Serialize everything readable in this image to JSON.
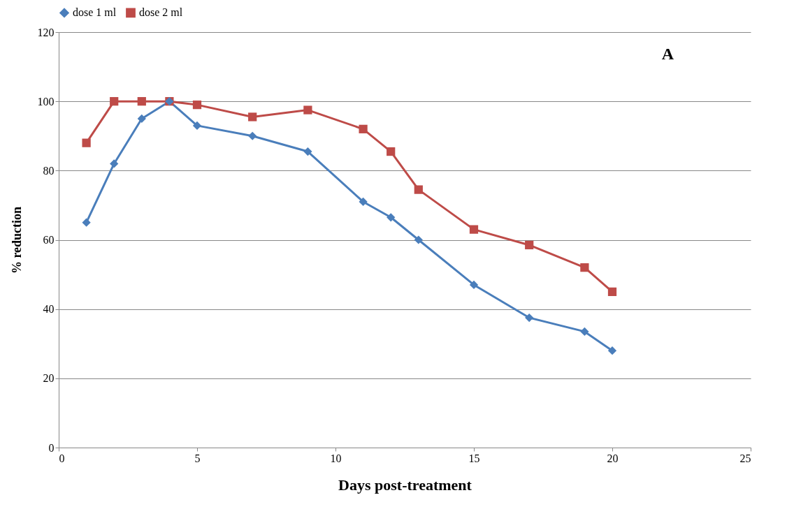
{
  "chart_data": {
    "type": "line",
    "xlabel": "Days post-treatment",
    "ylabel": "% reduction",
    "x": [
      1,
      2,
      3,
      4,
      5,
      7,
      9,
      11,
      12,
      13,
      15,
      17,
      19,
      20
    ],
    "series": [
      {
        "name": "dose 1 ml",
        "color": "#4a7ebb",
        "marker": "diamond",
        "values": [
          65,
          82,
          95,
          100,
          93,
          90,
          85.5,
          71,
          66.5,
          60,
          47,
          37.5,
          33.5,
          28
        ]
      },
      {
        "name": "dose 2 ml",
        "color": "#be4b48",
        "marker": "square",
        "values": [
          88,
          100,
          100,
          100,
          99,
          95.5,
          97.5,
          92,
          85.5,
          74.5,
          63,
          58.5,
          52,
          45
        ]
      }
    ],
    "xlim": [
      0,
      25
    ],
    "xticks": [
      0,
      5,
      10,
      15,
      20,
      25
    ],
    "ylim": [
      0,
      120
    ],
    "yticks": [
      0,
      20,
      40,
      60,
      80,
      100,
      120
    ],
    "grid": "y",
    "legend": "top",
    "line_style": "solid",
    "annotations": [
      "A"
    ]
  }
}
